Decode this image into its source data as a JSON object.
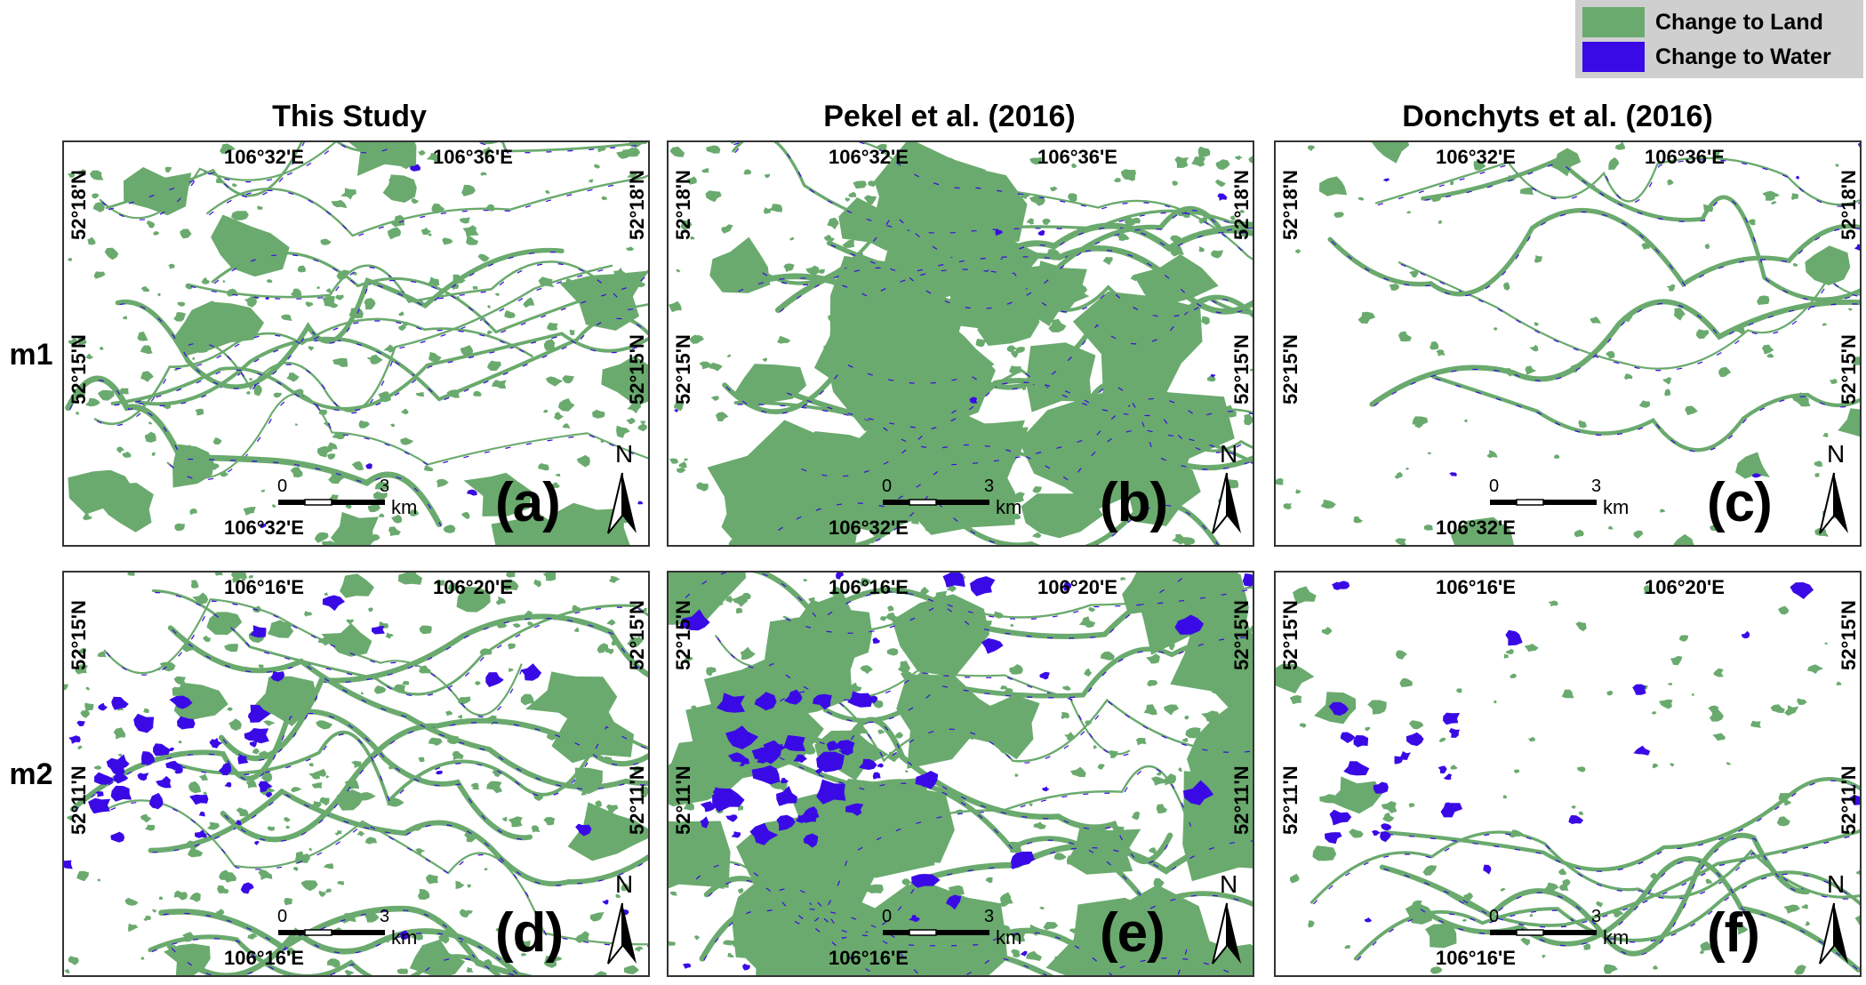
{
  "legend": {
    "items": [
      {
        "label": "Change to Land",
        "color": "#6aaa6e"
      },
      {
        "label": "Change to Water",
        "color": "#3a0ae6"
      }
    ]
  },
  "columns": [
    "This Study",
    "Pekel et al. (2016)",
    "Donchyts et al. (2016)"
  ],
  "rows": [
    "m1",
    "m2"
  ],
  "panels": [
    {
      "letter": "(a)",
      "top_left": "106°32'E",
      "top_right": "106°36'E",
      "bottom": "106°32'E",
      "left_top": "52°18'N",
      "left_mid": "52°15'N",
      "right_top": "52°18'N",
      "right_mid": "52°15'N"
    },
    {
      "letter": "(b)",
      "top_left": "106°32'E",
      "top_right": "106°36'E",
      "bottom": "106°32'E",
      "left_top": "52°18'N",
      "left_mid": "52°15'N",
      "right_top": "52°18'N",
      "right_mid": "52°15'N"
    },
    {
      "letter": "(c)",
      "top_left": "106°32'E",
      "top_right": "106°36'E",
      "bottom": "106°32'E",
      "left_top": "52°18'N",
      "left_mid": "52°15'N",
      "right_top": "52°18'N",
      "right_mid": "52°15'N"
    },
    {
      "letter": "(d)",
      "top_left": "106°16'E",
      "top_right": "106°20'E",
      "bottom": "106°16'E",
      "left_top": "52°15'N",
      "left_mid": "52°11'N",
      "right_top": "52°15'N",
      "right_mid": "52°11'N"
    },
    {
      "letter": "(e)",
      "top_left": "106°16'E",
      "top_right": "106°20'E",
      "bottom": "106°16'E",
      "left_top": "52°15'N",
      "left_mid": "52°11'N",
      "right_top": "52°15'N",
      "right_mid": "52°11'N"
    },
    {
      "letter": "(f)",
      "top_left": "106°16'E",
      "top_right": "106°20'E",
      "bottom": "106°16'E",
      "left_top": "52°15'N",
      "left_mid": "52°11'N",
      "right_top": "52°15'N",
      "right_mid": "52°11'N"
    }
  ],
  "scale": {
    "start": "0",
    "end": "3",
    "unit": "km"
  },
  "north": "N",
  "colors": {
    "land": "#6aaa6e",
    "water": "#3a0ae6"
  }
}
